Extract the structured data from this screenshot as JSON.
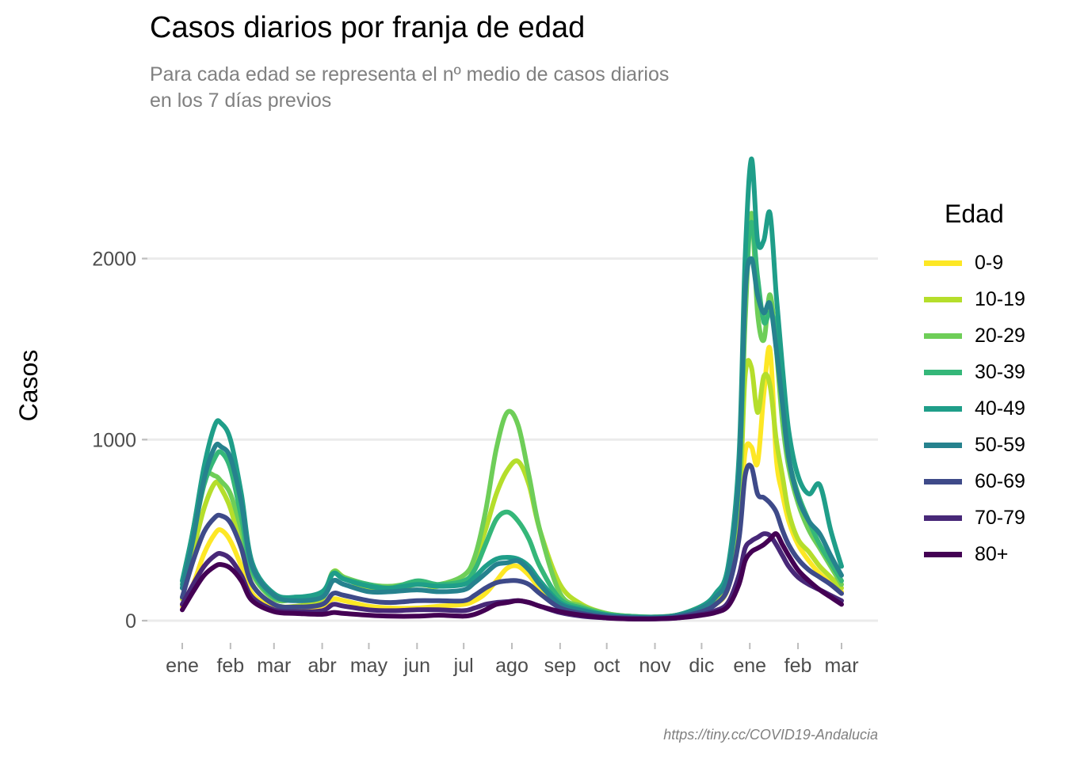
{
  "chart_data": {
    "type": "line",
    "title": "Casos diarios por franja de edad",
    "subtitle": [
      "Para cada edad se representa el nº medio de casos diarios",
      "en los 7 días previos"
    ],
    "ylabel": "Casos",
    "xlabel": "",
    "caption": "https://tiny.cc/COVID19-Andalucia",
    "legend_title": "Edad",
    "legend_position": "right",
    "grid": "horizontal",
    "ylim": [
      -60,
      2780
    ],
    "yticks": [
      0,
      1000,
      2000
    ],
    "x_tick_labels": [
      "ene",
      "feb",
      "mar",
      "abr",
      "may",
      "jun",
      "jul",
      "ago",
      "sep",
      "oct",
      "nov",
      "dic",
      "ene",
      "feb",
      "mar"
    ],
    "x_tick_dates": [
      "2021-01-01",
      "2021-02-01",
      "2021-03-01",
      "2021-04-01",
      "2021-05-01",
      "2021-06-01",
      "2021-07-01",
      "2021-08-01",
      "2021-09-01",
      "2021-10-01",
      "2021-11-01",
      "2021-12-01",
      "2022-01-01",
      "2022-02-01",
      "2022-03-01"
    ],
    "x": [
      "2021-01-01",
      "2021-01-08",
      "2021-01-15",
      "2021-01-22",
      "2021-01-26",
      "2021-02-01",
      "2021-02-08",
      "2021-02-15",
      "2021-03-01",
      "2021-03-15",
      "2021-04-01",
      "2021-04-08",
      "2021-04-15",
      "2021-05-01",
      "2021-05-15",
      "2021-06-01",
      "2021-06-15",
      "2021-07-01",
      "2021-07-08",
      "2021-07-15",
      "2021-07-22",
      "2021-07-29",
      "2021-08-05",
      "2021-08-12",
      "2021-08-19",
      "2021-09-01",
      "2021-09-15",
      "2021-10-01",
      "2021-10-15",
      "2021-11-01",
      "2021-11-15",
      "2021-12-01",
      "2021-12-10",
      "2021-12-18",
      "2021-12-25",
      "2021-12-29",
      "2022-01-02",
      "2022-01-06",
      "2022-01-10",
      "2022-01-14",
      "2022-01-18",
      "2022-01-22",
      "2022-01-26",
      "2022-02-01",
      "2022-02-08",
      "2022-02-15",
      "2022-02-22",
      "2022-03-01"
    ],
    "series": [
      {
        "name": "0-9",
        "color": "#FDE725",
        "values": [
          80,
          200,
          370,
          480,
          500,
          440,
          300,
          150,
          70,
          60,
          80,
          120,
          110,
          80,
          70,
          70,
          80,
          90,
          110,
          150,
          220,
          290,
          300,
          250,
          180,
          80,
          50,
          30,
          20,
          20,
          25,
          60,
          90,
          180,
          500,
          930,
          960,
          870,
          1250,
          1500,
          900,
          700,
          550,
          420,
          330,
          260,
          210,
          160
        ]
      },
      {
        "name": "10-19",
        "color": "#B5DE2B",
        "values": [
          120,
          380,
          620,
          760,
          730,
          620,
          400,
          200,
          90,
          80,
          120,
          270,
          240,
          170,
          170,
          200,
          190,
          250,
          330,
          500,
          700,
          830,
          880,
          750,
          500,
          200,
          90,
          40,
          25,
          20,
          30,
          60,
          100,
          220,
          600,
          1350,
          1400,
          1150,
          1350,
          1300,
          1000,
          800,
          600,
          450,
          380,
          300,
          240,
          180
        ]
      },
      {
        "name": "20-29",
        "color": "#6ECE58",
        "values": [
          180,
          500,
          790,
          800,
          770,
          700,
          500,
          260,
          120,
          120,
          150,
          270,
          240,
          200,
          190,
          210,
          200,
          250,
          350,
          600,
          950,
          1150,
          1080,
          800,
          500,
          150,
          80,
          40,
          25,
          20,
          30,
          80,
          130,
          260,
          750,
          1650,
          2250,
          1700,
          1550,
          1800,
          1500,
          1100,
          850,
          650,
          500,
          400,
          300,
          200
        ]
      },
      {
        "name": "30-39",
        "color": "#35B779",
        "values": [
          200,
          470,
          750,
          900,
          930,
          840,
          570,
          280,
          130,
          130,
          150,
          260,
          230,
          200,
          180,
          220,
          200,
          220,
          280,
          420,
          560,
          600,
          550,
          450,
          300,
          120,
          70,
          35,
          25,
          20,
          30,
          80,
          140,
          280,
          800,
          1800,
          2200,
          1900,
          1650,
          1700,
          1600,
          1200,
          900,
          700,
          550,
          420,
          320,
          220
        ]
      },
      {
        "name": "40-49",
        "color": "#1F9E89",
        "values": [
          220,
          500,
          850,
          1080,
          1090,
          1000,
          700,
          320,
          150,
          130,
          160,
          260,
          230,
          190,
          180,
          200,
          190,
          200,
          240,
          300,
          340,
          350,
          340,
          300,
          220,
          100,
          60,
          30,
          20,
          20,
          30,
          80,
          150,
          300,
          900,
          2000,
          2550,
          2100,
          2100,
          2250,
          1800,
          1400,
          1050,
          800,
          700,
          750,
          500,
          300
        ]
      },
      {
        "name": "50-59",
        "color": "#26828E",
        "values": [
          180,
          450,
          780,
          960,
          960,
          900,
          650,
          300,
          140,
          110,
          130,
          220,
          200,
          160,
          160,
          170,
          160,
          170,
          210,
          260,
          310,
          320,
          330,
          280,
          200,
          90,
          55,
          30,
          20,
          18,
          28,
          70,
          130,
          260,
          800,
          1800,
          2000,
          1800,
          1700,
          1750,
          1500,
          1200,
          900,
          680,
          550,
          480,
          360,
          250
        ]
      },
      {
        "name": "60-69",
        "color": "#3E4A89",
        "values": [
          130,
          330,
          490,
          570,
          580,
          540,
          400,
          200,
          90,
          75,
          90,
          150,
          140,
          110,
          100,
          110,
          110,
          110,
          140,
          180,
          210,
          220,
          220,
          200,
          150,
          70,
          40,
          20,
          15,
          12,
          20,
          50,
          90,
          180,
          450,
          800,
          850,
          700,
          680,
          650,
          600,
          500,
          420,
          340,
          280,
          240,
          200,
          150
        ]
      },
      {
        "name": "70-79",
        "color": "#482878",
        "values": [
          90,
          200,
          300,
          360,
          370,
          340,
          250,
          130,
          60,
          50,
          55,
          90,
          80,
          60,
          55,
          60,
          60,
          55,
          70,
          90,
          100,
          105,
          110,
          100,
          80,
          45,
          25,
          15,
          10,
          10,
          15,
          35,
          55,
          100,
          250,
          400,
          440,
          460,
          480,
          470,
          420,
          360,
          300,
          240,
          200,
          170,
          140,
          110
        ]
      },
      {
        "name": "80+",
        "color": "#440154",
        "values": [
          60,
          160,
          250,
          300,
          310,
          290,
          220,
          110,
          50,
          40,
          35,
          45,
          40,
          30,
          25,
          25,
          30,
          25,
          35,
          60,
          90,
          100,
          110,
          100,
          80,
          50,
          30,
          15,
          10,
          10,
          15,
          30,
          45,
          80,
          200,
          330,
          380,
          400,
          420,
          450,
          480,
          420,
          360,
          280,
          220,
          170,
          130,
          90
        ]
      }
    ]
  }
}
